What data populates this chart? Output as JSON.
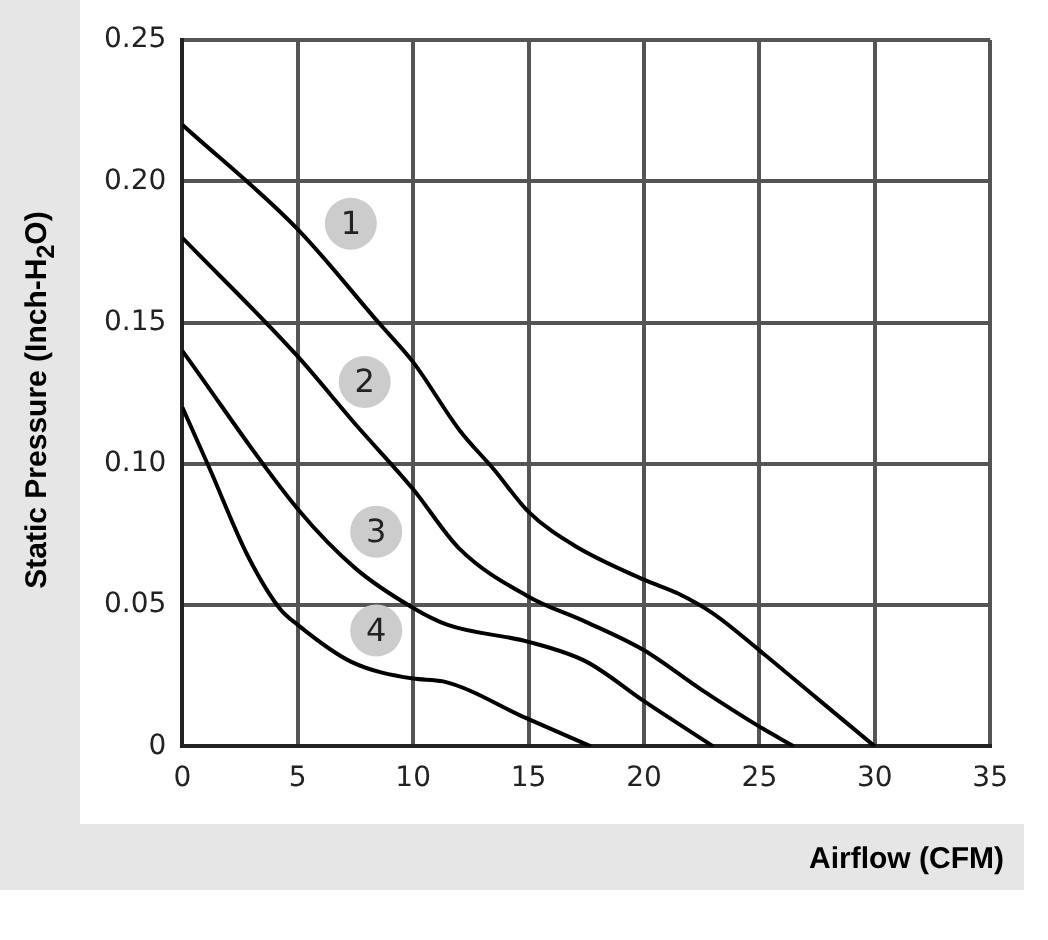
{
  "chart_data": {
    "type": "line",
    "xlabel": "Airflow (CFM)",
    "ylabel": "Static Pressure (Inch-H$_{2}$O)",
    "xlim": [
      0,
      35
    ],
    "xticks": [
      0,
      5,
      10,
      15,
      20,
      25,
      30,
      35
    ],
    "ylim": [
      0,
      0.25
    ],
    "yticks": [
      0,
      0.05,
      {
        "value": 0.1,
        "label": "0.10"
      },
      0.15,
      {
        "value": 0.2,
        "label": "0.20"
      },
      0.25
    ],
    "grid": true,
    "legend": false,
    "marker": "none",
    "line_style": "solid",
    "series": [
      {
        "color": "#000000",
        "x": [
          0,
          5,
          8.5,
          10,
          12,
          13.5,
          15,
          17,
          20,
          21.5,
          23,
          25,
          27.5,
          30
        ],
        "values": [
          0.22,
          0.183,
          0.15,
          0.136,
          0.112,
          0.098,
          0.083,
          0.071,
          0.059,
          0.054,
          0.047,
          0.034,
          0.017,
          0
        ]
      },
      {
        "color": "#000000",
        "x": [
          0,
          5,
          7.5,
          10,
          12,
          15,
          17.5,
          20,
          22.5,
          25,
          26.5
        ],
        "values": [
          0.18,
          0.138,
          0.114,
          0.091,
          0.07,
          0.053,
          0.044,
          0.034,
          0.02,
          0.007,
          0
        ]
      },
      {
        "color": "#000000",
        "x": [
          0,
          5,
          7.5,
          10,
          11.5,
          15,
          17.5,
          20,
          23
        ],
        "values": [
          0.14,
          0.084,
          0.063,
          0.049,
          0.043,
          0.037,
          0.03,
          0.016,
          0
        ]
      },
      {
        "color": "#000000",
        "x": [
          0,
          1.2,
          2.8,
          4.2,
          5,
          7.3,
          10,
          11.3,
          14.9,
          17.7
        ],
        "values": [
          0.12,
          0.098,
          0.068,
          0.049,
          0.043,
          0.03,
          0.024,
          0.023,
          0.01,
          0
        ]
      }
    ],
    "annotations": [
      {
        "text": "1",
        "x": 7.3,
        "y": 0.185
      },
      {
        "text": "2",
        "x": 7.9,
        "y": 0.129
      },
      {
        "text": "3",
        "x": 8.4,
        "y": 0.076
      },
      {
        "text": "4",
        "x": 8.4,
        "y": 0.041
      }
    ]
  }
}
